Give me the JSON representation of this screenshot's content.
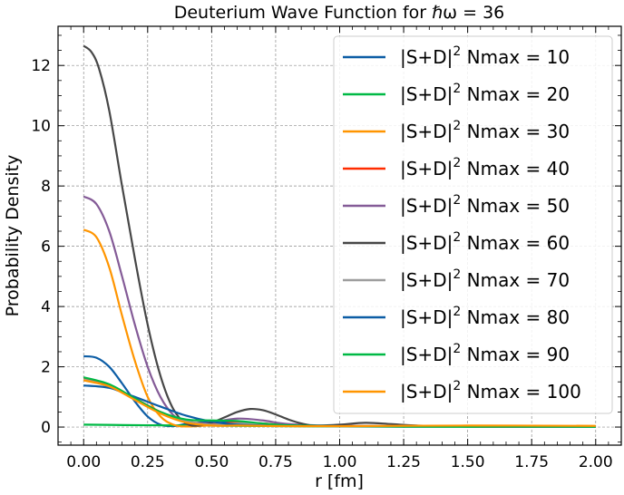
{
  "chart_data": {
    "type": "line",
    "title": "Deuterium Wave Function for ℏω = 36",
    "xlabel": "r [fm]",
    "ylabel": "Probability Density",
    "xlim": [
      -0.1,
      2.1
    ],
    "ylim": [
      -0.6,
      13.3
    ],
    "x_ticks": [
      "0.00",
      "0.25",
      "0.50",
      "0.75",
      "1.00",
      "1.25",
      "1.50",
      "1.75",
      "2.00"
    ],
    "y_ticks": [
      "0",
      "2",
      "4",
      "6",
      "8",
      "10",
      "12"
    ],
    "grid": true,
    "legend_position": "top-right",
    "legend_prefix": "|S+D|",
    "legend_sup": "2",
    "series": [
      {
        "name": " Nmax = 10",
        "color": "#0c5da5",
        "x": [
          0,
          0.05,
          0.1,
          0.15,
          0.2,
          0.25,
          0.3,
          0.35,
          0.4,
          0.5,
          0.6,
          0.7,
          0.8,
          1.0,
          1.2,
          1.5,
          2.0
        ],
        "y": [
          2.35,
          2.3,
          2.0,
          1.45,
          0.85,
          0.35,
          0.08,
          0.03,
          0.1,
          0.18,
          0.15,
          0.08,
          0.04,
          0.03,
          0.02,
          0.01,
          0.01
        ]
      },
      {
        "name": " Nmax = 20",
        "color": "#00b945",
        "x": [
          0,
          0.25,
          0.5,
          0.75,
          1.0,
          1.25,
          1.5,
          1.75,
          2.0
        ],
        "y": [
          0.08,
          0.06,
          0.05,
          0.03,
          0.02,
          0.01,
          0.01,
          0.01,
          0.01
        ]
      },
      {
        "name": " Nmax = 30",
        "color": "#ff9500",
        "x": [
          0,
          0.05,
          0.1,
          0.15,
          0.2,
          0.25,
          0.3,
          0.35,
          0.4,
          0.5,
          0.6,
          0.7,
          0.8,
          1.0,
          1.5,
          2.0
        ],
        "y": [
          6.55,
          6.3,
          5.3,
          3.7,
          2.2,
          1.0,
          0.35,
          0.08,
          0.02,
          0.06,
          0.1,
          0.08,
          0.05,
          0.03,
          0.02,
          0.01
        ]
      },
      {
        "name": " Nmax = 40",
        "color": "#ff2c00",
        "x": [
          0,
          0.1,
          0.2,
          0.3,
          0.4,
          0.5,
          0.6,
          0.7,
          0.8,
          1.0,
          1.5,
          2.0
        ],
        "y": [
          1.62,
          1.4,
          0.95,
          0.5,
          0.2,
          0.1,
          0.15,
          0.12,
          0.06,
          0.03,
          0.02,
          0.01
        ]
      },
      {
        "name": " Nmax = 50",
        "color": "#845b97",
        "x": [
          0,
          0.05,
          0.1,
          0.15,
          0.2,
          0.25,
          0.3,
          0.35,
          0.4,
          0.45,
          0.5,
          0.6,
          0.7,
          0.8,
          1.0,
          1.5,
          2.0
        ],
        "y": [
          7.65,
          7.4,
          6.5,
          5.0,
          3.4,
          2.0,
          1.0,
          0.4,
          0.15,
          0.1,
          0.15,
          0.28,
          0.22,
          0.1,
          0.04,
          0.02,
          0.01
        ]
      },
      {
        "name": " Nmax = 60",
        "color": "#474747",
        "x": [
          0,
          0.03,
          0.06,
          0.1,
          0.15,
          0.2,
          0.25,
          0.3,
          0.35,
          0.4,
          0.45,
          0.5,
          0.55,
          0.6,
          0.65,
          0.7,
          0.75,
          0.8,
          0.85,
          0.9,
          1.0,
          1.1,
          1.2,
          1.3,
          1.5,
          2.0
        ],
        "y": [
          12.65,
          12.45,
          11.9,
          10.5,
          8.0,
          5.6,
          3.4,
          1.7,
          0.6,
          0.12,
          0.05,
          0.15,
          0.32,
          0.5,
          0.6,
          0.56,
          0.42,
          0.25,
          0.12,
          0.05,
          0.08,
          0.14,
          0.1,
          0.05,
          0.02,
          0.01
        ]
      },
      {
        "name": " Nmax = 70",
        "color": "#9e9e9e",
        "x": [
          0,
          0.1,
          0.2,
          0.3,
          0.4,
          0.5,
          0.6,
          0.7,
          0.8,
          1.0,
          1.5,
          2.0
        ],
        "y": [
          1.58,
          1.35,
          0.92,
          0.48,
          0.2,
          0.08,
          0.12,
          0.1,
          0.05,
          0.03,
          0.02,
          0.01
        ]
      },
      {
        "name": " Nmax = 80",
        "color": "#0c5da5",
        "x": [
          0,
          0.1,
          0.2,
          0.3,
          0.4,
          0.5,
          0.6,
          0.7,
          0.8,
          1.0,
          1.5,
          2.0
        ],
        "y": [
          1.38,
          1.3,
          1.0,
          0.68,
          0.38,
          0.18,
          0.08,
          0.05,
          0.04,
          0.03,
          0.02,
          0.01
        ]
      },
      {
        "name": " Nmax = 90",
        "color": "#00b945",
        "x": [
          0,
          0.1,
          0.2,
          0.3,
          0.4,
          0.5,
          0.6,
          0.7,
          0.8,
          1.0,
          1.5,
          2.0
        ],
        "y": [
          1.65,
          1.42,
          0.95,
          0.5,
          0.25,
          0.22,
          0.2,
          0.12,
          0.06,
          0.03,
          0.02,
          0.01
        ]
      },
      {
        "name": " Nmax = 100",
        "color": "#ff9500",
        "x": [
          0,
          0.1,
          0.2,
          0.3,
          0.4,
          0.5,
          0.6,
          0.7,
          0.8,
          1.0,
          1.5,
          2.0
        ],
        "y": [
          1.55,
          1.35,
          0.9,
          0.45,
          0.15,
          0.05,
          0.05,
          0.04,
          0.03,
          0.03,
          0.05,
          0.04
        ]
      }
    ]
  }
}
